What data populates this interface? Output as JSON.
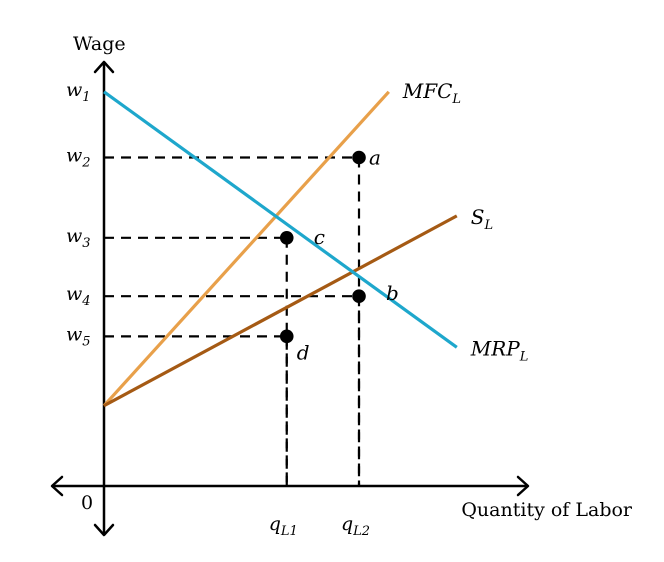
{
  "chart_data": {
    "type": "line",
    "title": "",
    "xlabel": "Quantity of Labor",
    "ylabel": "Wage",
    "origin_label": "0",
    "grid": false,
    "legend": "none",
    "xlim": [
      0,
      10
    ],
    "ylim": [
      0,
      10
    ],
    "y_ticks": [
      {
        "base": "w",
        "sub": "1",
        "value": 10.8
      },
      {
        "base": "w",
        "sub": "2",
        "value": 9.0
      },
      {
        "base": "w",
        "sub": "3",
        "value": 6.8
      },
      {
        "base": "w",
        "sub": "4",
        "value": 5.2
      },
      {
        "base": "w",
        "sub": "5",
        "value": 4.1
      }
    ],
    "x_ticks": [
      {
        "base": "q",
        "sub": "L1",
        "value": 4.3
      },
      {
        "base": "q",
        "sub": "L2",
        "value": 6.0
      }
    ],
    "series": [
      {
        "name": "MFC",
        "sub": "L",
        "color": "#e8a04a",
        "x": [
          0,
          6.7
        ],
        "y": [
          2.2,
          10.8
        ]
      },
      {
        "name": "S",
        "sub": "L",
        "color": "#a55a14",
        "x": [
          0,
          8.3
        ],
        "y": [
          2.2,
          7.4
        ]
      },
      {
        "name": "MRP",
        "sub": "L",
        "color": "#1ea7cc",
        "x": [
          0,
          8.3
        ],
        "y": [
          10.8,
          3.8
        ]
      }
    ],
    "points": [
      {
        "label": "a",
        "x": 6.0,
        "y": 9.0
      },
      {
        "label": "b",
        "x": 6.0,
        "y": 5.2
      },
      {
        "label": "c",
        "x": 4.3,
        "y": 6.8
      },
      {
        "label": "d",
        "x": 4.3,
        "y": 4.1
      }
    ]
  }
}
